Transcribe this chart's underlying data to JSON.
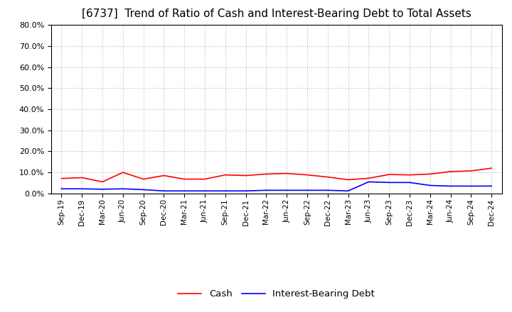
{
  "title": "[6737]  Trend of Ratio of Cash and Interest-Bearing Debt to Total Assets",
  "x_labels": [
    "Sep-19",
    "Dec-19",
    "Mar-20",
    "Jun-20",
    "Sep-20",
    "Dec-20",
    "Mar-21",
    "Jun-21",
    "Sep-21",
    "Dec-21",
    "Mar-22",
    "Jun-22",
    "Sep-22",
    "Dec-22",
    "Mar-23",
    "Jun-23",
    "Sep-23",
    "Dec-23",
    "Mar-24",
    "Jun-24",
    "Sep-24",
    "Dec-24"
  ],
  "cash": [
    0.071,
    0.075,
    0.055,
    0.1,
    0.068,
    0.085,
    0.068,
    0.068,
    0.088,
    0.085,
    0.092,
    0.095,
    0.088,
    0.078,
    0.065,
    0.072,
    0.09,
    0.088,
    0.092,
    0.104,
    0.107,
    0.12
  ],
  "ibd": [
    0.022,
    0.022,
    0.02,
    0.022,
    0.018,
    0.012,
    0.012,
    0.012,
    0.012,
    0.012,
    0.015,
    0.015,
    0.015,
    0.015,
    0.012,
    0.055,
    0.052,
    0.052,
    0.038,
    0.035,
    0.035,
    0.035
  ],
  "cash_color": "#ff0000",
  "ibd_color": "#0000ff",
  "ylim": [
    0.0,
    0.8
  ],
  "yticks": [
    0.0,
    0.1,
    0.2,
    0.3,
    0.4,
    0.5,
    0.6,
    0.7,
    0.8
  ],
  "background_color": "#ffffff",
  "grid_color": "#bbbbbb",
  "title_fontsize": 11,
  "legend_labels": [
    "Cash",
    "Interest-Bearing Debt"
  ],
  "linewidth": 1.2
}
